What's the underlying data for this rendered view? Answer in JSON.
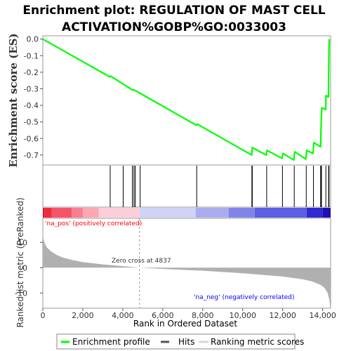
{
  "title_line1": "Enrichment plot: REGULATION OF MAST CELL",
  "title_line2": "ACTIVATION%GOBP%GO:0033003",
  "colors": {
    "profile": "#00ff00",
    "hits": "#000000",
    "metric_fill": "#b0b0b0",
    "pos_label": "#ff0000",
    "neg_label": "#0000ff",
    "zero_line": "#999999"
  },
  "chart_data": [
    {
      "type": "line",
      "name": "enrichment-profile",
      "ylabel": "Enrichment score (ES)",
      "ylim": [
        -0.76,
        0.02
      ],
      "yticks": [
        "0.0",
        "-0.1",
        "-0.2",
        "-0.3",
        "-0.4",
        "-0.5",
        "-0.6",
        "-0.7"
      ],
      "ytick_values": [
        0.0,
        -0.1,
        -0.2,
        -0.3,
        -0.4,
        -0.5,
        -0.6,
        -0.7
      ],
      "xlim": [
        0,
        14400
      ],
      "series": [
        {
          "x": [
            0,
            3350,
            3390,
            4000,
            4480,
            4560,
            4620,
            4870,
            7680,
            7720,
            10450,
            10480,
            11180,
            11220,
            11970,
            12010,
            12560,
            12600,
            13160,
            13200,
            13520,
            13560,
            13900,
            13910,
            13930,
            13940,
            13960,
            14150,
            14170,
            14290,
            14300,
            14310,
            14320,
            14330
          ],
          "y": [
            0.0,
            -0.228,
            -0.223,
            -0.27,
            -0.307,
            -0.307,
            -0.31,
            -0.327,
            -0.52,
            -0.513,
            -0.7,
            -0.655,
            -0.7,
            -0.672,
            -0.72,
            -0.69,
            -0.73,
            -0.68,
            -0.725,
            -0.672,
            -0.69,
            -0.625,
            -0.65,
            -0.58,
            -0.5,
            -0.46,
            -0.415,
            -0.425,
            -0.34,
            -0.35,
            -0.24,
            -0.12,
            -0.04,
            0.0
          ]
        }
      ],
      "grid": false
    },
    {
      "type": "hits",
      "name": "gene-set-hits",
      "x": [
        3370,
        4020,
        4480,
        4560,
        4620,
        4870,
        7700,
        10460,
        10480,
        11200,
        11990,
        12580,
        13180,
        13540,
        13900,
        13920,
        13940,
        14160,
        14300,
        14320
      ]
    },
    {
      "type": "area",
      "name": "ranked-list-metric",
      "ylabel": "Ranked list metric (PreRanked)",
      "xlabel": "Rank in Ordered Dataset",
      "ylim": [
        -16,
        19.5
      ],
      "yticks": [
        "10",
        "0",
        "-10"
      ],
      "ytick_values": [
        10,
        0,
        -10
      ],
      "xlim": [
        0,
        14400
      ],
      "xticks": [
        "0",
        "2,000",
        "4,000",
        "6,000",
        "8,000",
        "10,000",
        "12,000",
        "14,000"
      ],
      "xtick_values": [
        0,
        2000,
        4000,
        6000,
        8000,
        10000,
        12000,
        14000
      ],
      "x": [
        0,
        30,
        100,
        200,
        400,
        700,
        1000,
        1500,
        2000,
        3000,
        4000,
        4837,
        6000,
        8000,
        10000,
        12000,
        13000,
        13500,
        13900,
        14100,
        14250,
        14330,
        14370,
        14400
      ],
      "values": [
        14,
        11.5,
        9.5,
        8,
        6.5,
        5,
        4,
        3,
        2.2,
        1.3,
        0.6,
        0,
        -0.5,
        -1.2,
        -2.2,
        -3.5,
        -4.6,
        -5.5,
        -6.8,
        -8,
        -10,
        -12.5,
        -15,
        -16
      ],
      "zero_cross_label": "Zero cross at 4837",
      "zero_cross_x": 4837,
      "pos_label": "'na_pos' (positively correlated)",
      "neg_label": "'na_neg' (negatively correlated)"
    }
  ],
  "legend": {
    "items": [
      {
        "label": "Enrichment profile",
        "color": "#00ff00"
      },
      {
        "label": "Hits",
        "color": "#555555"
      },
      {
        "label": "Ranking metric scores",
        "color": "#d8d8d8"
      }
    ]
  },
  "heatmap_segments": [
    {
      "x0": 0,
      "x1": 80,
      "color": "#e8102a"
    },
    {
      "x0": 80,
      "x1": 450,
      "color": "#f22b3c"
    },
    {
      "x0": 450,
      "x1": 1450,
      "color": "#f7546a"
    },
    {
      "x0": 1450,
      "x1": 2000,
      "color": "#fa7e90"
    },
    {
      "x0": 2000,
      "x1": 2800,
      "color": "#fba7b4"
    },
    {
      "x0": 2800,
      "x1": 4837,
      "color": "#fccfd8"
    },
    {
      "x0": 4837,
      "x1": 7650,
      "color": "#d0d2f6"
    },
    {
      "x0": 7650,
      "x1": 9300,
      "color": "#a9acee"
    },
    {
      "x0": 9300,
      "x1": 10600,
      "color": "#8084ea"
    },
    {
      "x0": 10600,
      "x1": 13200,
      "color": "#5c5ee3"
    },
    {
      "x0": 13200,
      "x1": 14000,
      "color": "#2f2bcf"
    },
    {
      "x0": 14000,
      "x1": 14400,
      "color": "#1f0fb4"
    }
  ]
}
